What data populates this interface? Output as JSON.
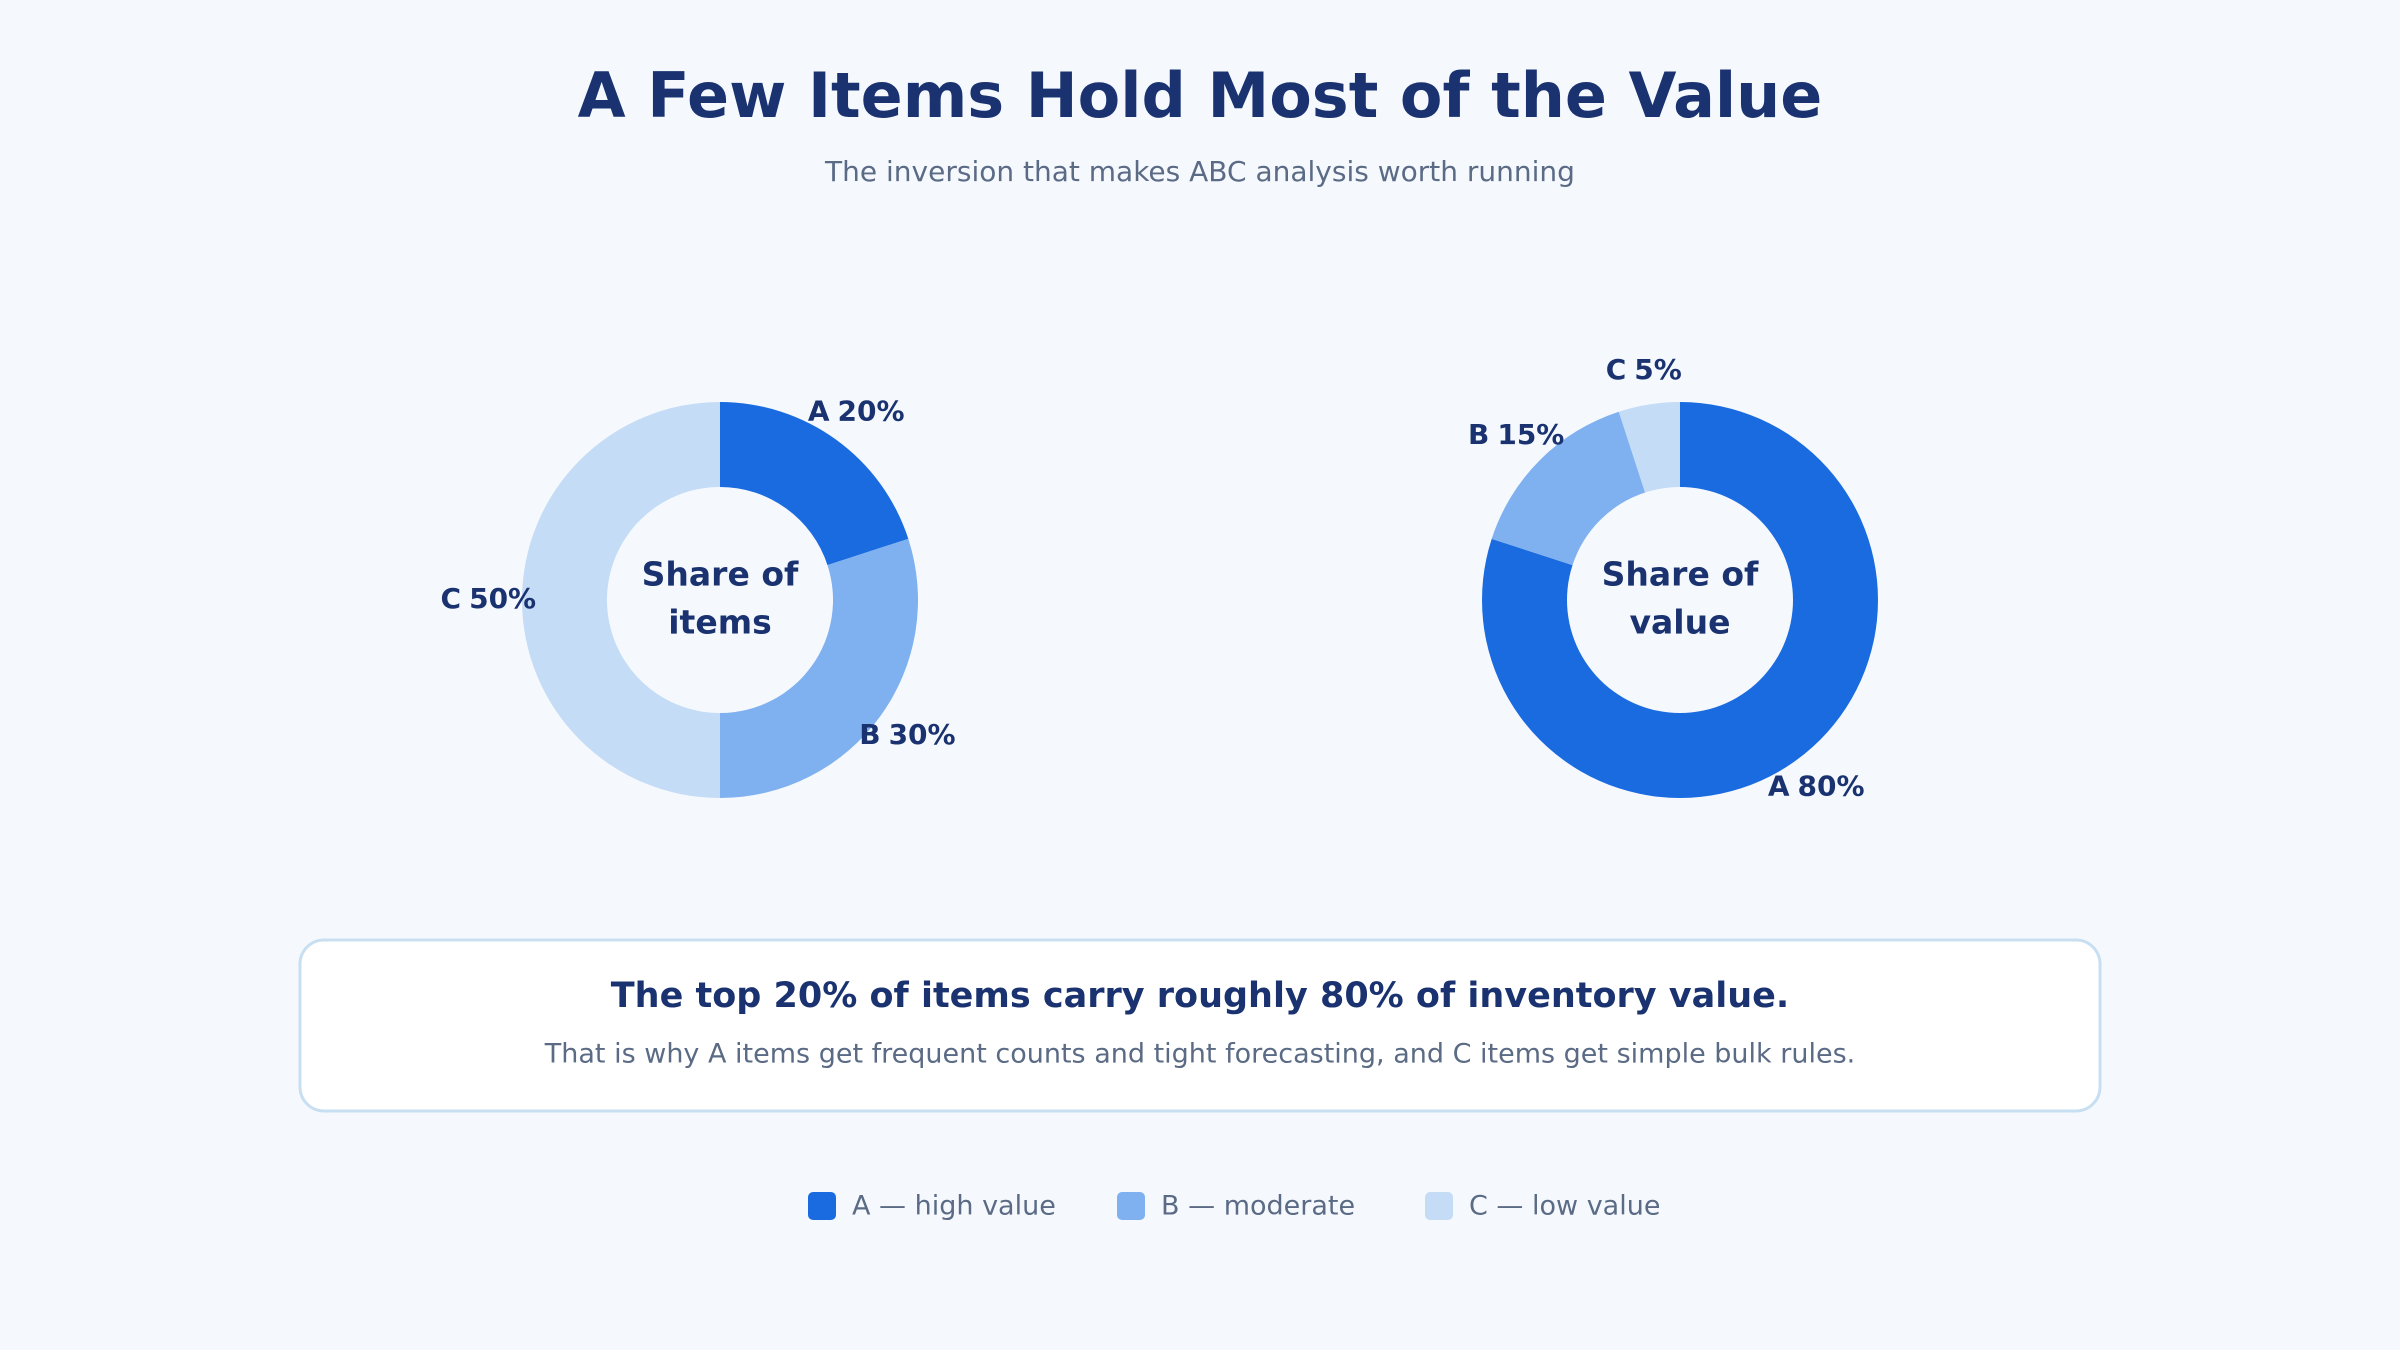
{
  "header": {
    "title": "A Few Items Hold Most of the Value",
    "subtitle": "The inversion that makes ABC analysis worth running"
  },
  "chart_data": [
    {
      "type": "pie",
      "center_label": [
        "Share of",
        "items"
      ],
      "categories": [
        "A",
        "B",
        "C"
      ],
      "values": [
        20,
        30,
        50
      ],
      "value_labels": [
        "20%",
        "30%",
        "50%"
      ],
      "colors": [
        "#1a6be0",
        "#7fb0f0",
        "#c5dcf6"
      ]
    },
    {
      "type": "pie",
      "center_label": [
        "Share of",
        "value"
      ],
      "categories": [
        "A",
        "B",
        "C"
      ],
      "values": [
        80,
        15,
        5
      ],
      "value_labels": [
        "80%",
        "15%",
        "5%"
      ],
      "colors": [
        "#1a6be0",
        "#7fb0f0",
        "#c5dcf6"
      ]
    }
  ],
  "callout": {
    "headline": "The top 20% of items carry roughly 80% of inventory value.",
    "body": "That is why A items get frequent counts and tight forecasting, and C items get simple bulk rules."
  },
  "legend": [
    {
      "label": "A — high value",
      "color": "#1a6be0"
    },
    {
      "label": "B — moderate",
      "color": "#7fb0f0"
    },
    {
      "label": "C — low value",
      "color": "#c5dcf6"
    }
  ]
}
